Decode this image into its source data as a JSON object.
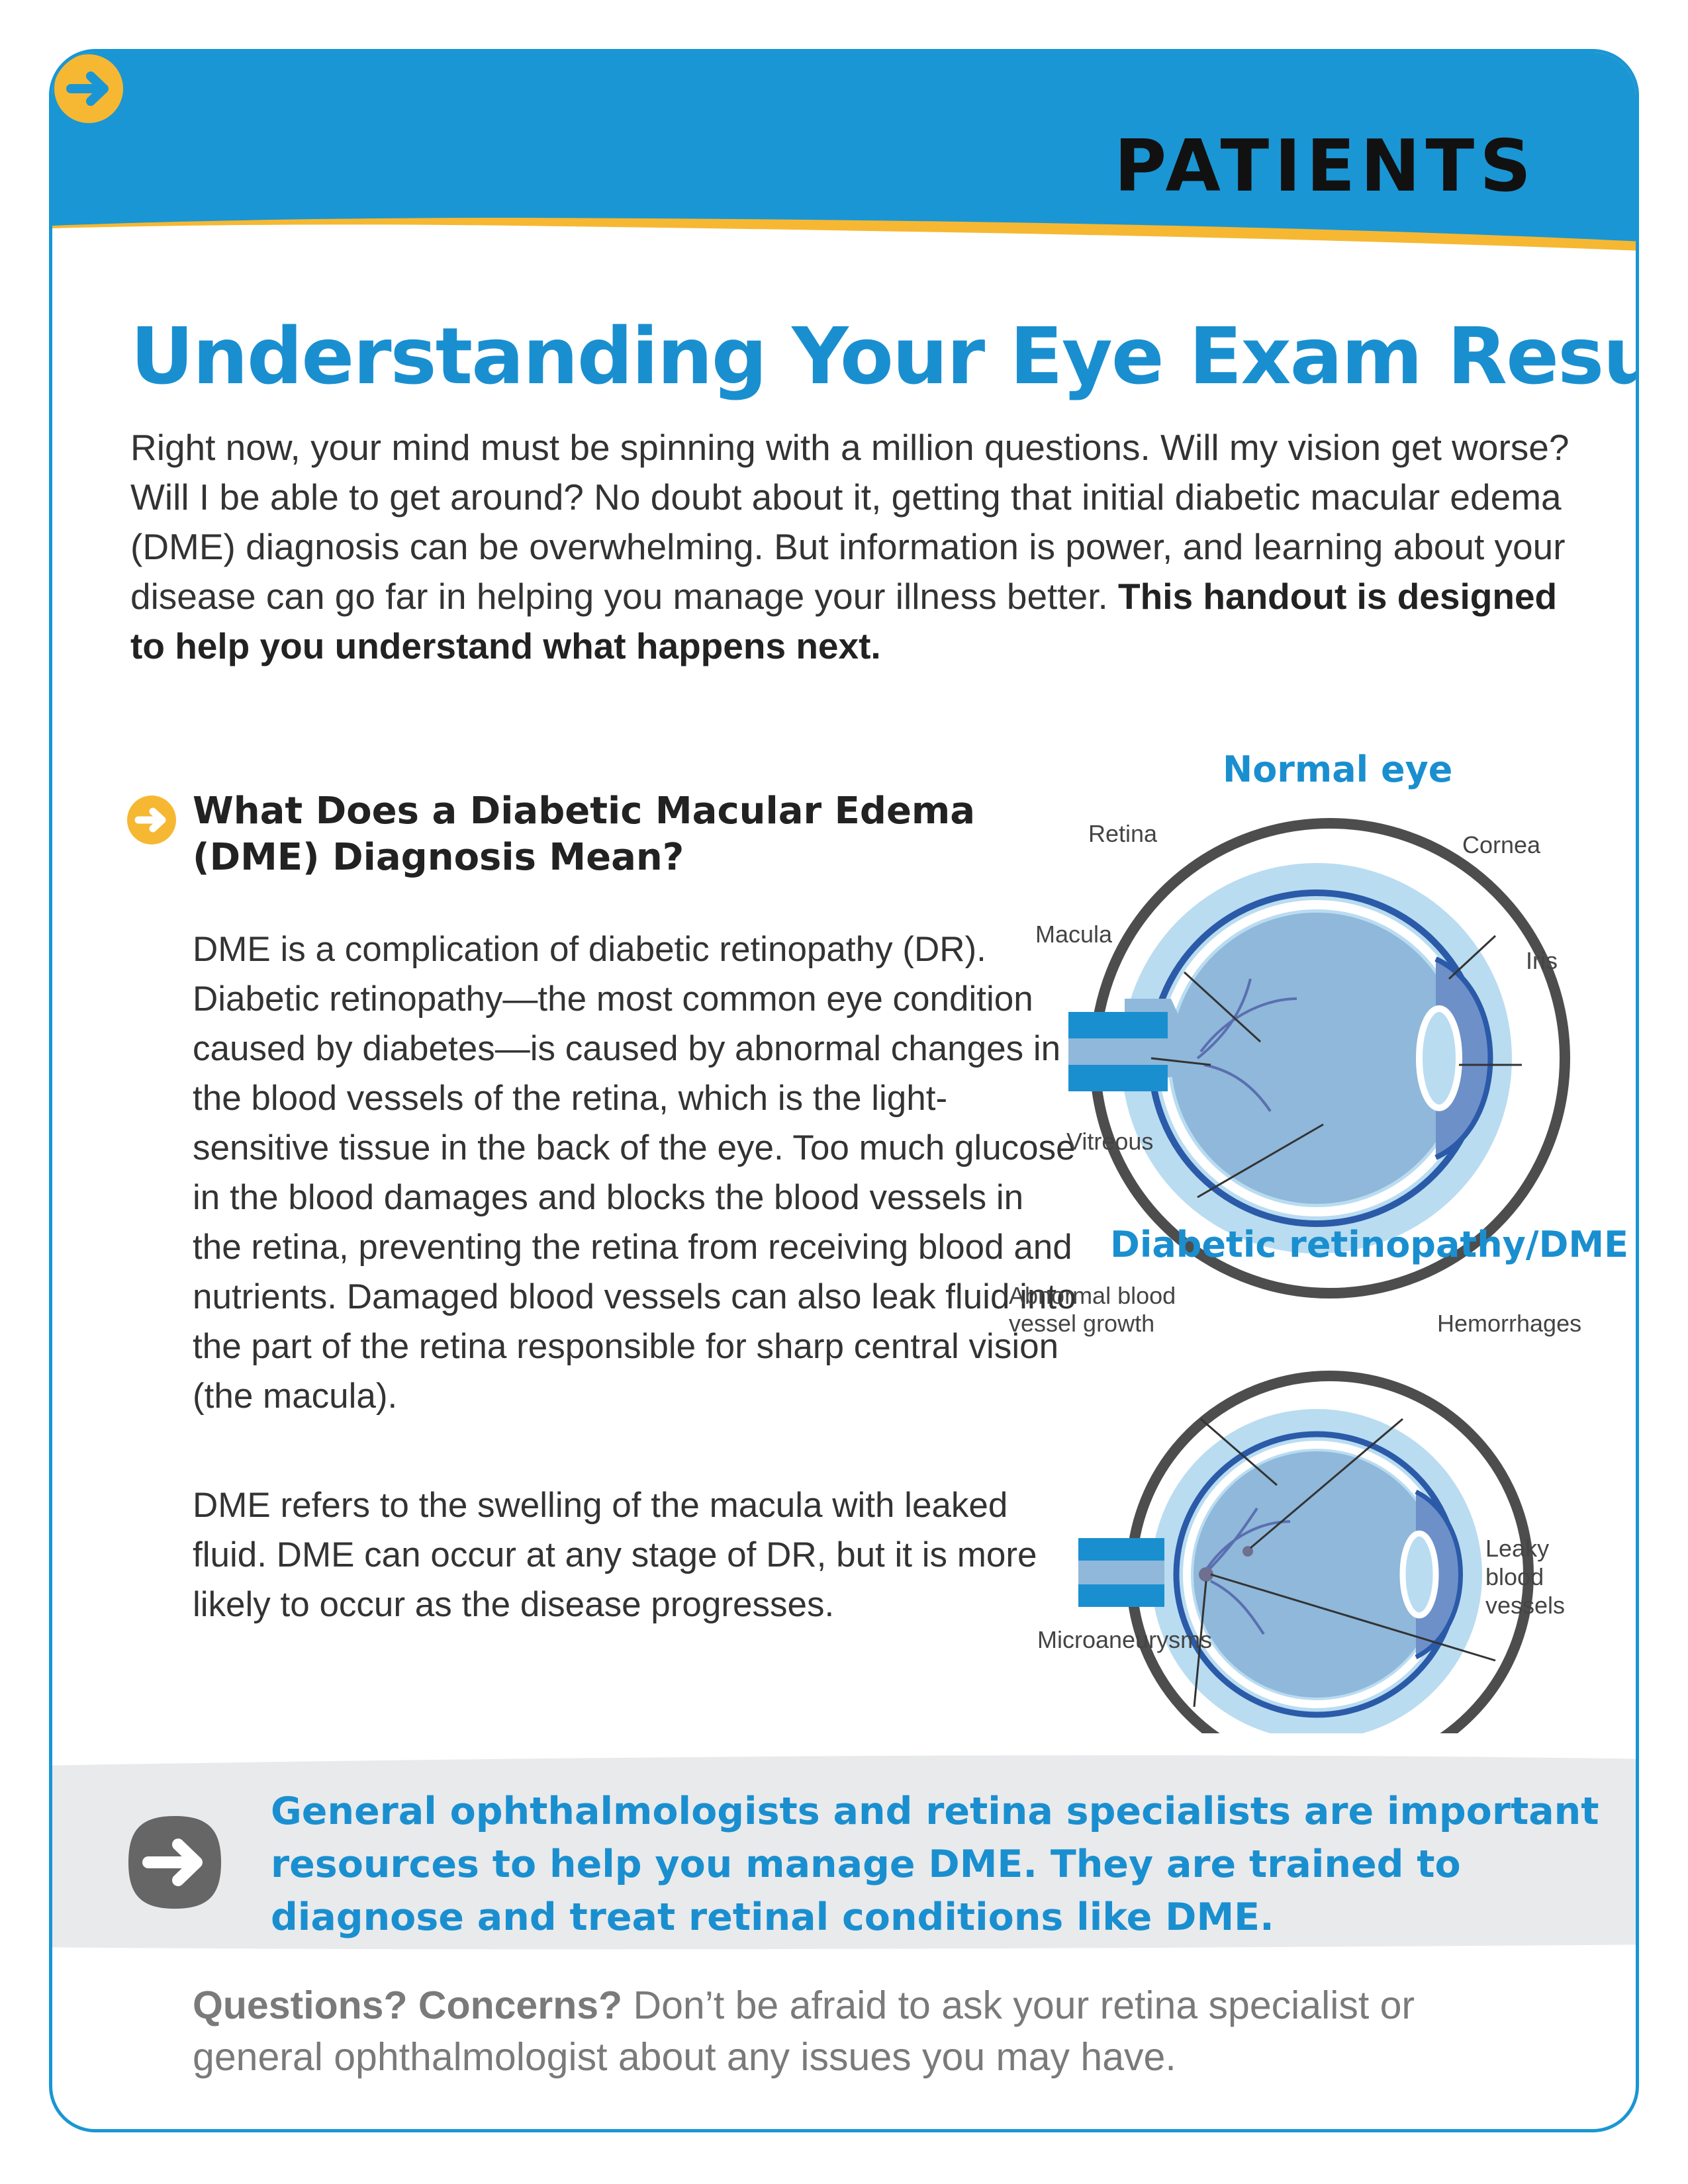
{
  "header": {
    "label": "PATIENTS",
    "colors": {
      "blue": "#1a96d4",
      "yellow": "#f6b832",
      "text": "#111111"
    },
    "arrow_icon": "arrow-right-circle-icon"
  },
  "title": "Understanding Your Eye Exam Results",
  "intro": {
    "text": "Right now, your mind must be spinning with a million questions. Will my vision get worse? Will I be able to get around? No doubt about it, getting that initial diabetic macular edema (DME) diagnosis can be overwhelming. But information is power, and learning about your disease can go far in helping you manage your illness better. ",
    "bold": "This handout is designed to help you understand what happens next."
  },
  "section": {
    "heading": "What Does a Diabetic Macular Edema (DME) Diagnosis Mean?",
    "paragraphs": [
      "DME is a complication of diabetic retinopathy (DR). Diabetic retinopathy—the most common eye condition caused by diabetes—is caused by abnormal changes in the blood vessels of the retina, which is the light-sensitive tissue in the back of the eye. Too much glucose in the blood damages and blocks the blood vessels in the retina, preventing the retina from receiving blood and nutrients. Damaged blood vessels can also leak fluid into the part of the retina responsible for sharp central vision (the macula).",
      "DME refers to the swelling of the macula with leaked fluid. DME can occur at any stage of DR, but it is more likely to occur as the disease progresses."
    ]
  },
  "figures": {
    "normal": {
      "title": "Normal eye",
      "labels": {
        "retina": "Retina",
        "cornea": "Cornea",
        "macula": "Macula",
        "iris": "Iris",
        "vitreous": "Vitreous"
      }
    },
    "dr": {
      "title": "Diabetic retinopathy/DME",
      "labels": {
        "abnormal_1": "Abnormal blood",
        "abnormal_2": "vessel growth",
        "hemorrhages": "Hemorrhages",
        "leaky_1": "Leaky",
        "leaky_2": "blood",
        "leaky_3": "vessels",
        "microaneurysms": "Microaneurysms"
      }
    }
  },
  "callout": {
    "text": "General ophthalmologists and retina specialists are important resources to help you manage DME. They are trained to diagnose and treat retinal conditions like DME."
  },
  "footer": {
    "bold": "Questions? Concerns?",
    "text": " Don’t be afraid to ask your retina specialist or general ophthalmologist about any issues you may have."
  }
}
